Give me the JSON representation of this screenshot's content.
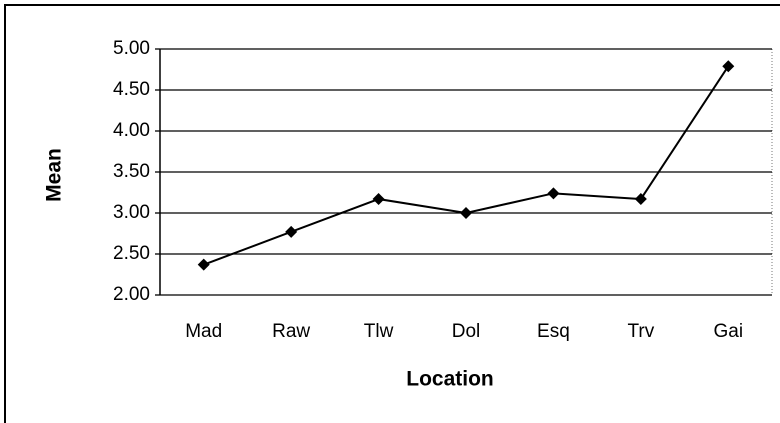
{
  "chart_data": {
    "type": "line",
    "x_label": "Location",
    "y_label": "Mean",
    "categories": [
      "Mad",
      "Raw",
      "Tlw",
      "Dol",
      "Esq",
      "Trv",
      "Gai"
    ],
    "values": [
      2.37,
      2.77,
      3.17,
      3.0,
      3.24,
      3.17,
      4.79
    ],
    "color": "#000000",
    "ylim": [
      2,
      5
    ],
    "yticks": [
      {
        "value": 2,
        "label": "2.00"
      },
      {
        "value": 2.5,
        "label": "2.50"
      },
      {
        "value": 3,
        "label": "3.00"
      },
      {
        "value": 3.5,
        "label": "3.50"
      },
      {
        "value": 4,
        "label": "4.00"
      },
      {
        "value": 4.5,
        "label": "4.50"
      },
      {
        "value": 5,
        "label": "5.00"
      }
    ],
    "grid": true
  }
}
